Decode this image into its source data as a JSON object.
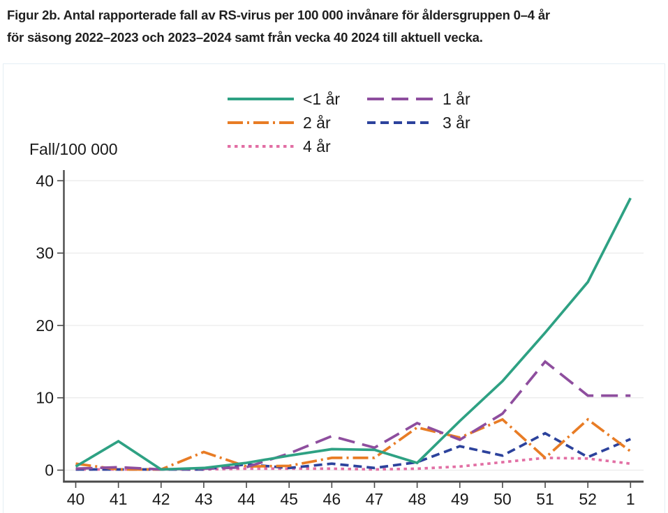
{
  "title": {
    "line1": "Figur 2b. Antal rapporterade fall av RS-virus per 100 000 invånare för åldersgruppen 0–4 år",
    "line2": "för säsong 2022–2023 och 2023–2024 samt från vecka 40 2024 till aktuell vecka."
  },
  "chart_data": {
    "type": "line",
    "title": "",
    "xlabel": "",
    "ylabel": "Fall/100 000",
    "x_tick_labels": [
      "40",
      "41",
      "42",
      "43",
      "44",
      "45",
      "46",
      "47",
      "48",
      "49",
      "50",
      "51",
      "52",
      "1"
    ],
    "y_ticks": [
      0,
      10,
      20,
      30,
      40
    ],
    "ylim": [
      0,
      40
    ],
    "grid": true,
    "legend_position": "top-center",
    "legend_columns": 2,
    "series": [
      {
        "name": "<1 år",
        "color": "#2ea183",
        "style": "solid",
        "values": [
          0.5,
          4.0,
          0.1,
          0.3,
          1.0,
          2.0,
          2.9,
          2.8,
          1.0,
          6.8,
          12.3,
          19.0,
          26.0,
          37.6
        ]
      },
      {
        "name": "1 år",
        "color": "#8e4e9e",
        "style": "long-dash",
        "values": [
          0.2,
          0.4,
          0.1,
          0.2,
          0.4,
          2.3,
          4.7,
          3.1,
          6.5,
          4.2,
          7.8,
          15.0,
          10.3,
          10.3
        ]
      },
      {
        "name": "2 år",
        "color": "#e87c25",
        "style": "dash-dot",
        "values": [
          0.9,
          0.1,
          0.1,
          2.5,
          0.5,
          0.6,
          1.7,
          1.7,
          5.9,
          4.5,
          7.0,
          1.7,
          7.0,
          2.6
        ]
      },
      {
        "name": "3 år",
        "color": "#2c429c",
        "style": "dash",
        "values": [
          0.1,
          0.1,
          0.1,
          0.1,
          0.8,
          0.3,
          0.9,
          0.3,
          1.1,
          3.3,
          2.0,
          5.1,
          1.8,
          4.3
        ]
      },
      {
        "name": "4 år",
        "color": "#e26fa4",
        "style": "dot",
        "values": [
          0.1,
          0.1,
          0.1,
          0.1,
          0.2,
          0.2,
          0.2,
          0.1,
          0.2,
          0.5,
          1.1,
          1.7,
          1.6,
          0.9
        ]
      }
    ]
  },
  "colors": {
    "axis": "#4a4a4a",
    "grid": "#ebebeb",
    "text": "#1a1a1a",
    "figure_border": "#e4eef4"
  }
}
